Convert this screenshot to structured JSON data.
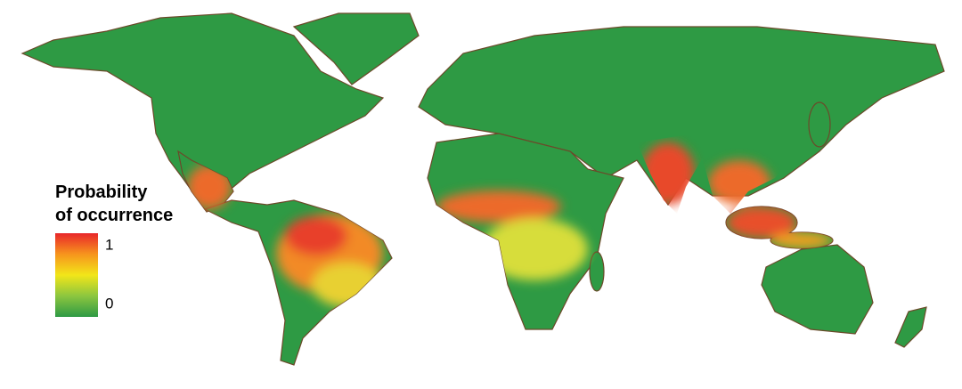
{
  "legend": {
    "title": [
      "Probability",
      "of occurrence"
    ],
    "ticks": [
      1,
      0
    ],
    "colors": [
      "#e8262a",
      "#f7941d",
      "#f2e619",
      "#8cc63f",
      "#2e9a44"
    ]
  }
}
